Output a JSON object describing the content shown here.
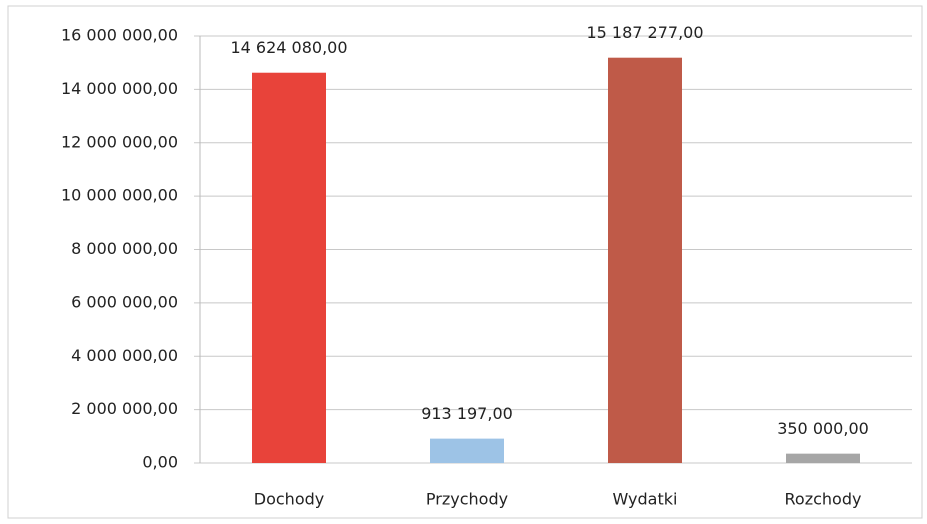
{
  "chart_data": {
    "type": "bar",
    "categories": [
      "Dochody",
      "Przychody",
      "Wydatki",
      "Rozchody"
    ],
    "values": [
      14624080,
      913197,
      15187277,
      350000
    ],
    "value_labels": [
      "14 624 080,00",
      "913 197,00",
      "15 187 277,00",
      "350 000,00"
    ],
    "colors": [
      "#e8433a",
      "#9dc3e6",
      "#bf5a48",
      "#a6a6a6"
    ],
    "ylim": [
      0,
      16000000
    ],
    "yticks": [
      {
        "value": 0,
        "label": "0,00"
      },
      {
        "value": 2000000,
        "label": "2 000 000,00"
      },
      {
        "value": 4000000,
        "label": "4 000 000,00"
      },
      {
        "value": 6000000,
        "label": "6 000 000,00"
      },
      {
        "value": 8000000,
        "label": "8 000 000,00"
      },
      {
        "value": 10000000,
        "label": "10 000 000,00"
      },
      {
        "value": 12000000,
        "label": "12 000 000,00"
      },
      {
        "value": 14000000,
        "label": "14 000 000,00"
      },
      {
        "value": 16000000,
        "label": "16 000 000,00"
      }
    ],
    "grid": true
  }
}
